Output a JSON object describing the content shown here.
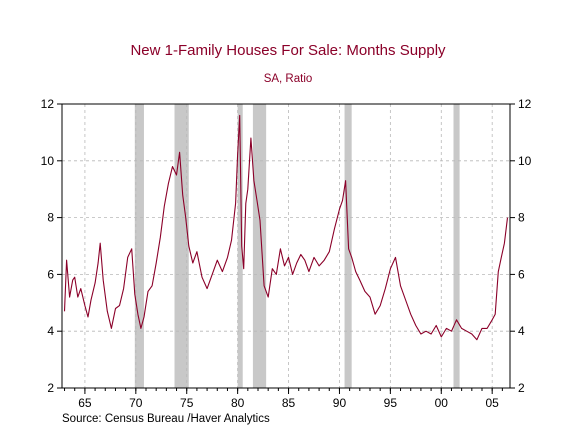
{
  "chart_data": {
    "type": "line",
    "title": "New 1-Family Houses For Sale: Months Supply",
    "subtitle": "SA, Ratio",
    "source": "Source:  Census Bureau /Haver Analytics",
    "xlim": [
      1962.75,
      2006.75
    ],
    "ylim": [
      2,
      12
    ],
    "y_ticks": [
      2,
      4,
      6,
      8,
      10,
      12
    ],
    "x_ticks": [
      {
        "value": 1965,
        "label": "65"
      },
      {
        "value": 1970,
        "label": "70"
      },
      {
        "value": 1975,
        "label": "75"
      },
      {
        "value": 1980,
        "label": "80"
      },
      {
        "value": 1985,
        "label": "85"
      },
      {
        "value": 1990,
        "label": "90"
      },
      {
        "value": 1995,
        "label": "95"
      },
      {
        "value": 2000,
        "label": "00"
      },
      {
        "value": 2005,
        "label": "05"
      }
    ],
    "grid": true,
    "recessions": [
      [
        1969.9,
        1970.8
      ],
      [
        1973.8,
        1975.2
      ],
      [
        1980.0,
        1980.5
      ],
      [
        1981.5,
        1982.8
      ],
      [
        1990.5,
        1991.2
      ],
      [
        2001.2,
        2001.8
      ]
    ],
    "line_color": "#8b0029",
    "recession_color": "#c8c8c8",
    "series": [
      {
        "x": [
          1963.0,
          1963.2,
          1963.5,
          1963.8,
          1964.0,
          1964.3,
          1964.6,
          1965.0,
          1965.3,
          1965.6,
          1966.0,
          1966.3,
          1966.5,
          1966.8,
          1967.2,
          1967.6,
          1968.0,
          1968.4,
          1968.8,
          1969.2,
          1969.6,
          1969.9,
          1970.2,
          1970.5,
          1970.8,
          1971.2,
          1971.6,
          1972.0,
          1972.4,
          1972.8,
          1973.2,
          1973.6,
          1974.0,
          1974.3,
          1974.6,
          1974.9,
          1975.2,
          1975.6,
          1976.0,
          1976.5,
          1977.0,
          1977.5,
          1978.0,
          1978.5,
          1979.0,
          1979.4,
          1979.8,
          1980.0,
          1980.2,
          1980.4,
          1980.6,
          1980.8,
          1981.0,
          1981.3,
          1981.6,
          1981.9,
          1982.2,
          1982.6,
          1983.0,
          1983.4,
          1983.8,
          1984.2,
          1984.6,
          1985.0,
          1985.4,
          1985.8,
          1986.2,
          1986.6,
          1987.0,
          1987.5,
          1988.0,
          1988.5,
          1989.0,
          1989.5,
          1990.0,
          1990.3,
          1990.6,
          1990.9,
          1991.2,
          1991.6,
          1992.0,
          1992.5,
          1993.0,
          1993.5,
          1994.0,
          1994.5,
          1995.0,
          1995.5,
          1996.0,
          1996.5,
          1997.0,
          1997.5,
          1998.0,
          1998.5,
          1999.0,
          1999.5,
          2000.0,
          2000.5,
          2001.0,
          2001.5,
          2002.0,
          2002.5,
          2003.0,
          2003.5,
          2004.0,
          2004.5,
          2005.0,
          2005.3,
          2005.6,
          2005.9,
          2006.2,
          2006.5
        ],
        "y": [
          4.7,
          6.5,
          5.2,
          5.8,
          5.9,
          5.2,
          5.5,
          4.9,
          4.5,
          5.1,
          5.7,
          6.4,
          7.1,
          5.8,
          4.7,
          4.1,
          4.8,
          4.9,
          5.5,
          6.6,
          6.9,
          5.3,
          4.6,
          4.1,
          4.5,
          5.4,
          5.6,
          6.4,
          7.3,
          8.4,
          9.2,
          9.8,
          9.5,
          10.3,
          8.8,
          8.0,
          7.0,
          6.4,
          6.8,
          5.9,
          5.5,
          6.0,
          6.5,
          6.1,
          6.6,
          7.2,
          8.5,
          10.2,
          11.6,
          7.0,
          6.2,
          8.5,
          9.0,
          10.8,
          9.3,
          8.6,
          7.9,
          5.6,
          5.2,
          6.2,
          6.0,
          6.9,
          6.3,
          6.6,
          6.0,
          6.4,
          6.7,
          6.5,
          6.1,
          6.6,
          6.3,
          6.5,
          6.8,
          7.6,
          8.3,
          8.6,
          9.3,
          6.9,
          6.6,
          6.1,
          5.8,
          5.4,
          5.2,
          4.6,
          4.9,
          5.5,
          6.2,
          6.6,
          5.6,
          5.1,
          4.6,
          4.2,
          3.9,
          4.0,
          3.9,
          4.2,
          3.8,
          4.1,
          4.0,
          4.4,
          4.1,
          4.0,
          3.9,
          3.7,
          4.1,
          4.1,
          4.4,
          4.6,
          6.1,
          6.6,
          7.1,
          8.0
        ]
      }
    ]
  }
}
